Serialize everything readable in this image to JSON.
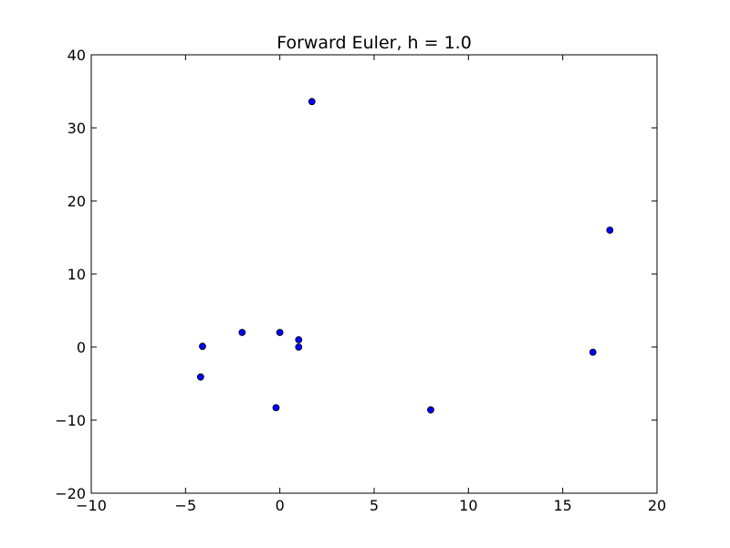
{
  "chart_data": {
    "type": "scatter",
    "title": "Forward Euler, h = 1.0",
    "xlabel": "",
    "ylabel": "",
    "xlim": [
      -10,
      20
    ],
    "ylim": [
      -20,
      40
    ],
    "xticks": [
      -10,
      -5,
      0,
      5,
      10,
      15,
      20
    ],
    "yticks": [
      -20,
      -10,
      0,
      10,
      20,
      30,
      40
    ],
    "xtick_labels": [
      "−10",
      "−5",
      "0",
      "5",
      "10",
      "15",
      "20"
    ],
    "ytick_labels": [
      "−20",
      "−10",
      "0",
      "10",
      "20",
      "30",
      "40"
    ],
    "grid": false,
    "legend": "none",
    "marker_color": "#0000ff",
    "series": [
      {
        "points": [
          {
            "x": 0.0,
            "y": 2.0
          },
          {
            "x": 1.0,
            "y": 1.0
          },
          {
            "x": 1.0,
            "y": 0.0
          },
          {
            "x": -2.0,
            "y": 2.0
          },
          {
            "x": -4.1,
            "y": 0.1
          },
          {
            "x": -4.2,
            "y": -4.1
          },
          {
            "x": -0.2,
            "y": -8.3
          },
          {
            "x": 8.0,
            "y": -8.6
          },
          {
            "x": 16.6,
            "y": -0.7
          },
          {
            "x": 17.5,
            "y": 16.0
          },
          {
            "x": 1.7,
            "y": 33.6
          }
        ]
      }
    ]
  }
}
